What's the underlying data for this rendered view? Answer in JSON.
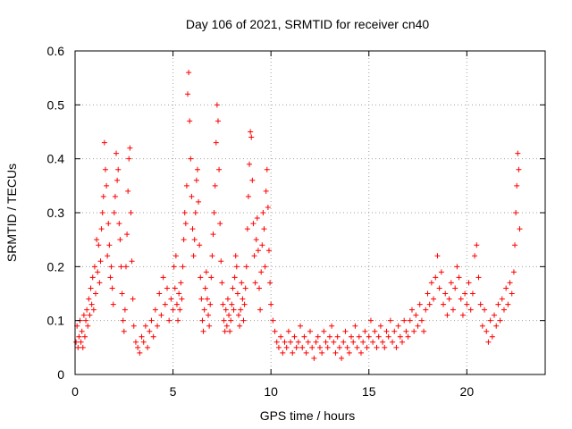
{
  "chart_data": {
    "type": "scatter",
    "title": "Day 106 of 2021, SRMTID for receiver cn40",
    "xlabel": "GPS time / hours",
    "ylabel": "SRMTID / TECUs",
    "xlim": [
      0,
      24
    ],
    "ylim": [
      0,
      0.6
    ],
    "x_ticks": [
      0,
      5,
      10,
      15,
      20
    ],
    "x_tick_labels": [
      "0",
      "5",
      "10",
      "15",
      "20"
    ],
    "y_ticks": [
      0,
      0.1,
      0.2,
      0.3,
      0.4,
      0.5,
      0.6
    ],
    "y_tick_labels": [
      "0",
      "0.1",
      "0.2",
      "0.3",
      "0.4",
      "0.5",
      "0.6"
    ],
    "grid": true,
    "marker": "+",
    "series": [
      {
        "name": "SRMTID",
        "color": "#ff0000",
        "points": [
          [
            0.05,
            0.06
          ],
          [
            0.1,
            0.09
          ],
          [
            0.15,
            0.05
          ],
          [
            0.2,
            0.07
          ],
          [
            0.25,
            0.1
          ],
          [
            0.3,
            0.06
          ],
          [
            0.35,
            0.08
          ],
          [
            0.4,
            0.05
          ],
          [
            0.45,
            0.11
          ],
          [
            0.5,
            0.07
          ],
          [
            0.55,
            0.1
          ],
          [
            0.6,
            0.12
          ],
          [
            0.65,
            0.09
          ],
          [
            0.7,
            0.14
          ],
          [
            0.75,
            0.11
          ],
          [
            0.8,
            0.16
          ],
          [
            0.85,
            0.13
          ],
          [
            0.9,
            0.18
          ],
          [
            0.95,
            0.12
          ],
          [
            1.0,
            0.2
          ],
          [
            1.05,
            0.15
          ],
          [
            1.1,
            0.25
          ],
          [
            1.15,
            0.19
          ],
          [
            1.2,
            0.24
          ],
          [
            1.25,
            0.17
          ],
          [
            1.3,
            0.21
          ],
          [
            1.35,
            0.27
          ],
          [
            1.4,
            0.3
          ],
          [
            1.45,
            0.33
          ],
          [
            1.5,
            0.43
          ],
          [
            1.55,
            0.38
          ],
          [
            1.6,
            0.35
          ],
          [
            1.65,
            0.22
          ],
          [
            1.7,
            0.28
          ],
          [
            1.75,
            0.24
          ],
          [
            1.8,
            0.18
          ],
          [
            1.85,
            0.2
          ],
          [
            1.9,
            0.16
          ],
          [
            1.95,
            0.13
          ],
          [
            2.0,
            0.3
          ],
          [
            2.05,
            0.33
          ],
          [
            2.1,
            0.41
          ],
          [
            2.15,
            0.36
          ],
          [
            2.2,
            0.38
          ],
          [
            2.25,
            0.28
          ],
          [
            2.3,
            0.25
          ],
          [
            2.35,
            0.2
          ],
          [
            2.4,
            0.15
          ],
          [
            2.45,
            0.1
          ],
          [
            2.5,
            0.08
          ],
          [
            2.55,
            0.12
          ],
          [
            2.6,
            0.2
          ],
          [
            2.65,
            0.26
          ],
          [
            2.7,
            0.34
          ],
          [
            2.75,
            0.4
          ],
          [
            2.8,
            0.42
          ],
          [
            2.85,
            0.3
          ],
          [
            2.9,
            0.21
          ],
          [
            2.95,
            0.14
          ],
          [
            3.0,
            0.09
          ],
          [
            3.1,
            0.06
          ],
          [
            3.2,
            0.05
          ],
          [
            3.3,
            0.04
          ],
          [
            3.4,
            0.07
          ],
          [
            3.5,
            0.06
          ],
          [
            3.6,
            0.09
          ],
          [
            3.7,
            0.05
          ],
          [
            3.8,
            0.08
          ],
          [
            3.9,
            0.1
          ],
          [
            4.0,
            0.07
          ],
          [
            4.1,
            0.12
          ],
          [
            4.2,
            0.09
          ],
          [
            4.3,
            0.15
          ],
          [
            4.4,
            0.11
          ],
          [
            4.5,
            0.18
          ],
          [
            4.6,
            0.13
          ],
          [
            4.7,
            0.16
          ],
          [
            4.8,
            0.1
          ],
          [
            4.9,
            0.14
          ],
          [
            5.0,
            0.12
          ],
          [
            5.05,
            0.2
          ],
          [
            5.1,
            0.16
          ],
          [
            5.15,
            0.22
          ],
          [
            5.2,
            0.13
          ],
          [
            5.25,
            0.1
          ],
          [
            5.3,
            0.15
          ],
          [
            5.35,
            0.12
          ],
          [
            5.4,
            0.17
          ],
          [
            5.45,
            0.14
          ],
          [
            5.5,
            0.2
          ],
          [
            5.55,
            0.25
          ],
          [
            5.6,
            0.3
          ],
          [
            5.65,
            0.28
          ],
          [
            5.7,
            0.35
          ],
          [
            5.75,
            0.52
          ],
          [
            5.8,
            0.56
          ],
          [
            5.85,
            0.47
          ],
          [
            5.9,
            0.4
          ],
          [
            5.95,
            0.33
          ],
          [
            6.0,
            0.27
          ],
          [
            6.05,
            0.22
          ],
          [
            6.1,
            0.25
          ],
          [
            6.15,
            0.3
          ],
          [
            6.2,
            0.36
          ],
          [
            6.25,
            0.38
          ],
          [
            6.3,
            0.32
          ],
          [
            6.35,
            0.24
          ],
          [
            6.4,
            0.18
          ],
          [
            6.45,
            0.14
          ],
          [
            6.5,
            0.1
          ],
          [
            6.55,
            0.08
          ],
          [
            6.6,
            0.12
          ],
          [
            6.65,
            0.16
          ],
          [
            6.7,
            0.19
          ],
          [
            6.75,
            0.14
          ],
          [
            6.8,
            0.11
          ],
          [
            6.85,
            0.09
          ],
          [
            6.9,
            0.13
          ],
          [
            6.95,
            0.18
          ],
          [
            7.0,
            0.22
          ],
          [
            7.05,
            0.26
          ],
          [
            7.1,
            0.3
          ],
          [
            7.15,
            0.35
          ],
          [
            7.2,
            0.43
          ],
          [
            7.25,
            0.5
          ],
          [
            7.3,
            0.47
          ],
          [
            7.35,
            0.38
          ],
          [
            7.4,
            0.28
          ],
          [
            7.45,
            0.21
          ],
          [
            7.5,
            0.17
          ],
          [
            7.55,
            0.13
          ],
          [
            7.6,
            0.1
          ],
          [
            7.65,
            0.08
          ],
          [
            7.7,
            0.12
          ],
          [
            7.75,
            0.09
          ],
          [
            7.8,
            0.14
          ],
          [
            7.85,
            0.11
          ],
          [
            7.9,
            0.08
          ],
          [
            7.95,
            0.1
          ],
          [
            8.0,
            0.13
          ],
          [
            8.05,
            0.16
          ],
          [
            8.1,
            0.12
          ],
          [
            8.15,
            0.18
          ],
          [
            8.2,
            0.22
          ],
          [
            8.25,
            0.2
          ],
          [
            8.3,
            0.15
          ],
          [
            8.35,
            0.11
          ],
          [
            8.4,
            0.09
          ],
          [
            8.45,
            0.12
          ],
          [
            8.5,
            0.17
          ],
          [
            8.55,
            0.14
          ],
          [
            8.6,
            0.1
          ],
          [
            8.65,
            0.13
          ],
          [
            8.7,
            0.16
          ],
          [
            8.75,
            0.2
          ],
          [
            8.8,
            0.27
          ],
          [
            8.85,
            0.33
          ],
          [
            8.9,
            0.39
          ],
          [
            8.95,
            0.45
          ],
          [
            9.0,
            0.44
          ],
          [
            9.05,
            0.36
          ],
          [
            9.1,
            0.28
          ],
          [
            9.15,
            0.22
          ],
          [
            9.2,
            0.17
          ],
          [
            9.25,
            0.25
          ],
          [
            9.3,
            0.29
          ],
          [
            9.35,
            0.23
          ],
          [
            9.4,
            0.16
          ],
          [
            9.45,
            0.12
          ],
          [
            9.5,
            0.19
          ],
          [
            9.55,
            0.24
          ],
          [
            9.6,
            0.3
          ],
          [
            9.65,
            0.27
          ],
          [
            9.7,
            0.2
          ],
          [
            9.75,
            0.34
          ],
          [
            9.8,
            0.38
          ],
          [
            9.85,
            0.31
          ],
          [
            9.9,
            0.23
          ],
          [
            9.95,
            0.17
          ],
          [
            10.0,
            0.13
          ],
          [
            10.1,
            0.1
          ],
          [
            10.2,
            0.08
          ],
          [
            10.3,
            0.06
          ],
          [
            10.4,
            0.05
          ],
          [
            10.5,
            0.07
          ],
          [
            10.6,
            0.04
          ],
          [
            10.7,
            0.06
          ],
          [
            10.8,
            0.05
          ],
          [
            10.9,
            0.08
          ],
          [
            11.0,
            0.06
          ],
          [
            11.1,
            0.04
          ],
          [
            11.2,
            0.07
          ],
          [
            11.3,
            0.05
          ],
          [
            11.4,
            0.06
          ],
          [
            11.5,
            0.09
          ],
          [
            11.6,
            0.05
          ],
          [
            11.7,
            0.07
          ],
          [
            11.8,
            0.04
          ],
          [
            11.9,
            0.06
          ],
          [
            12.0,
            0.08
          ],
          [
            12.1,
            0.05
          ],
          [
            12.2,
            0.03
          ],
          [
            12.3,
            0.06
          ],
          [
            12.4,
            0.07
          ],
          [
            12.5,
            0.05
          ],
          [
            12.6,
            0.04
          ],
          [
            12.7,
            0.08
          ],
          [
            12.8,
            0.06
          ],
          [
            12.9,
            0.05
          ],
          [
            13.0,
            0.07
          ],
          [
            13.1,
            0.09
          ],
          [
            13.2,
            0.06
          ],
          [
            13.3,
            0.04
          ],
          [
            13.4,
            0.07
          ],
          [
            13.5,
            0.05
          ],
          [
            13.6,
            0.03
          ],
          [
            13.7,
            0.06
          ],
          [
            13.8,
            0.08
          ],
          [
            13.9,
            0.05
          ],
          [
            14.0,
            0.04
          ],
          [
            14.1,
            0.07
          ],
          [
            14.2,
            0.06
          ],
          [
            14.3,
            0.09
          ],
          [
            14.4,
            0.05
          ],
          [
            14.5,
            0.07
          ],
          [
            14.6,
            0.04
          ],
          [
            14.7,
            0.06
          ],
          [
            14.8,
            0.08
          ],
          [
            14.9,
            0.05
          ],
          [
            15.0,
            0.07
          ],
          [
            15.1,
            0.1
          ],
          [
            15.2,
            0.06
          ],
          [
            15.3,
            0.08
          ],
          [
            15.4,
            0.05
          ],
          [
            15.5,
            0.07
          ],
          [
            15.6,
            0.09
          ],
          [
            15.7,
            0.06
          ],
          [
            15.8,
            0.05
          ],
          [
            15.9,
            0.08
          ],
          [
            16.0,
            0.07
          ],
          [
            16.1,
            0.1
          ],
          [
            16.2,
            0.06
          ],
          [
            16.3,
            0.08
          ],
          [
            16.4,
            0.05
          ],
          [
            16.5,
            0.09
          ],
          [
            16.6,
            0.07
          ],
          [
            16.7,
            0.06
          ],
          [
            16.8,
            0.1
          ],
          [
            16.9,
            0.08
          ],
          [
            17.0,
            0.07
          ],
          [
            17.1,
            0.1
          ],
          [
            17.2,
            0.12
          ],
          [
            17.3,
            0.08
          ],
          [
            17.4,
            0.11
          ],
          [
            17.5,
            0.09
          ],
          [
            17.6,
            0.13
          ],
          [
            17.7,
            0.1
          ],
          [
            17.8,
            0.08
          ],
          [
            17.9,
            0.12
          ],
          [
            18.0,
            0.15
          ],
          [
            18.1,
            0.13
          ],
          [
            18.2,
            0.17
          ],
          [
            18.3,
            0.14
          ],
          [
            18.4,
            0.18
          ],
          [
            18.5,
            0.22
          ],
          [
            18.6,
            0.16
          ],
          [
            18.7,
            0.19
          ],
          [
            18.8,
            0.13
          ],
          [
            18.9,
            0.15
          ],
          [
            19.0,
            0.11
          ],
          [
            19.1,
            0.14
          ],
          [
            19.2,
            0.17
          ],
          [
            19.3,
            0.12
          ],
          [
            19.4,
            0.16
          ],
          [
            19.5,
            0.2
          ],
          [
            19.6,
            0.18
          ],
          [
            19.7,
            0.14
          ],
          [
            19.8,
            0.11
          ],
          [
            19.9,
            0.15
          ],
          [
            20.0,
            0.13
          ],
          [
            20.1,
            0.17
          ],
          [
            20.2,
            0.12
          ],
          [
            20.3,
            0.15
          ],
          [
            20.4,
            0.22
          ],
          [
            20.5,
            0.24
          ],
          [
            20.6,
            0.18
          ],
          [
            20.7,
            0.13
          ],
          [
            20.8,
            0.09
          ],
          [
            20.9,
            0.12
          ],
          [
            21.0,
            0.08
          ],
          [
            21.1,
            0.06
          ],
          [
            21.2,
            0.1
          ],
          [
            21.3,
            0.07
          ],
          [
            21.4,
            0.11
          ],
          [
            21.5,
            0.09
          ],
          [
            21.6,
            0.13
          ],
          [
            21.7,
            0.1
          ],
          [
            21.8,
            0.14
          ],
          [
            21.9,
            0.12
          ],
          [
            22.0,
            0.16
          ],
          [
            22.1,
            0.13
          ],
          [
            22.2,
            0.17
          ],
          [
            22.3,
            0.15
          ],
          [
            22.4,
            0.19
          ],
          [
            22.45,
            0.24
          ],
          [
            22.5,
            0.3
          ],
          [
            22.55,
            0.35
          ],
          [
            22.6,
            0.41
          ],
          [
            22.65,
            0.38
          ],
          [
            22.7,
            0.27
          ]
        ]
      }
    ]
  }
}
